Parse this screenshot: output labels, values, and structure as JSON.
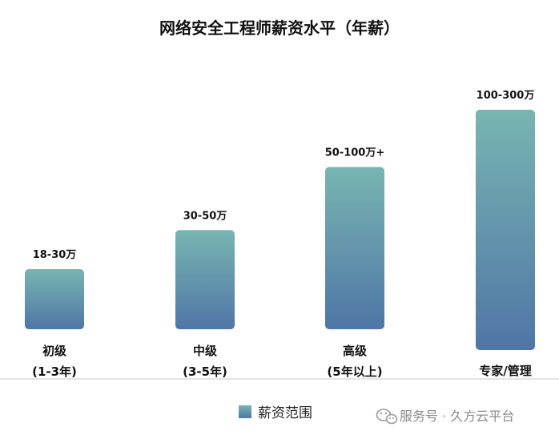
{
  "chart_data": {
    "type": "bar",
    "title": "网络安全工程师薪资水平（年薪）",
    "categories": [
      [
        "初级",
        "(1-3年)"
      ],
      [
        "中级",
        "(3-5年)"
      ],
      [
        "高级",
        "(5年以上)"
      ],
      [
        "专家/管理"
      ]
    ],
    "series": [
      {
        "name": "薪资范围",
        "values": [
          1.0,
          1.65,
          2.7,
          4.0
        ],
        "labels": [
          "18-30万",
          "30-50万",
          "50-100万+",
          "100-300万"
        ]
      }
    ],
    "gradient_top": "#78b5b1",
    "gradient_bottom": "#4f76a6",
    "axis_color": "#c8c8c8",
    "legend_position": "bottom"
  },
  "watermark": {
    "text": "服务号 · 久方云平台",
    "icon": "wechat-icon"
  }
}
